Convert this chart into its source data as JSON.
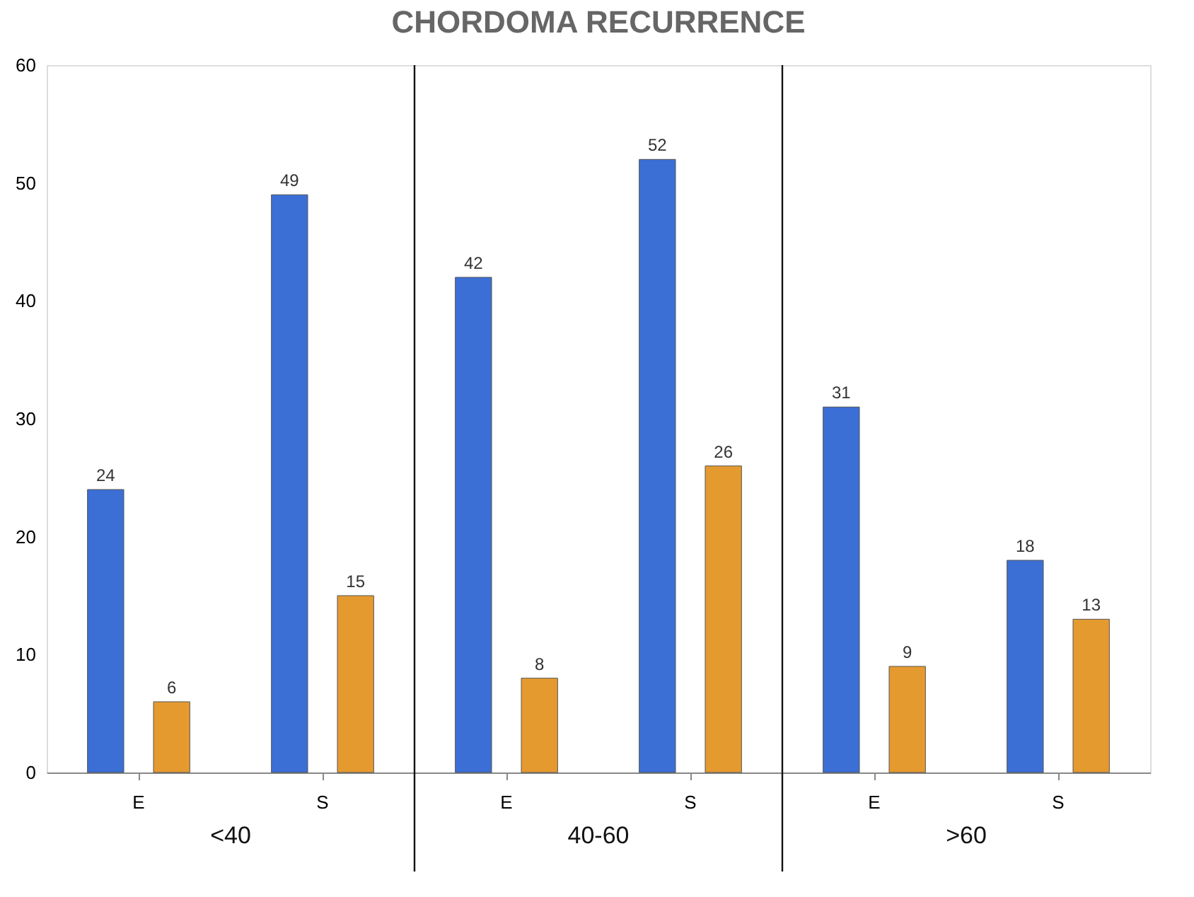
{
  "chart_data": {
    "type": "bar",
    "title": "CHORDOMA RECURRENCE",
    "categories": [
      "E",
      "S",
      "E",
      "S",
      "E",
      "S"
    ],
    "series": [
      {
        "color": "#3b6fd6",
        "values": [
          24,
          49,
          42,
          52,
          31,
          18
        ]
      },
      {
        "color": "#e59a30",
        "values": [
          6,
          15,
          8,
          26,
          9,
          13
        ]
      }
    ],
    "ylim": [
      0,
      60
    ],
    "yticks": [
      0,
      10,
      20,
      30,
      40,
      50,
      60
    ],
    "grid": false,
    "legend": false,
    "data_labels": true,
    "annotations": [
      "<40",
      "40-60",
      ">60"
    ]
  }
}
